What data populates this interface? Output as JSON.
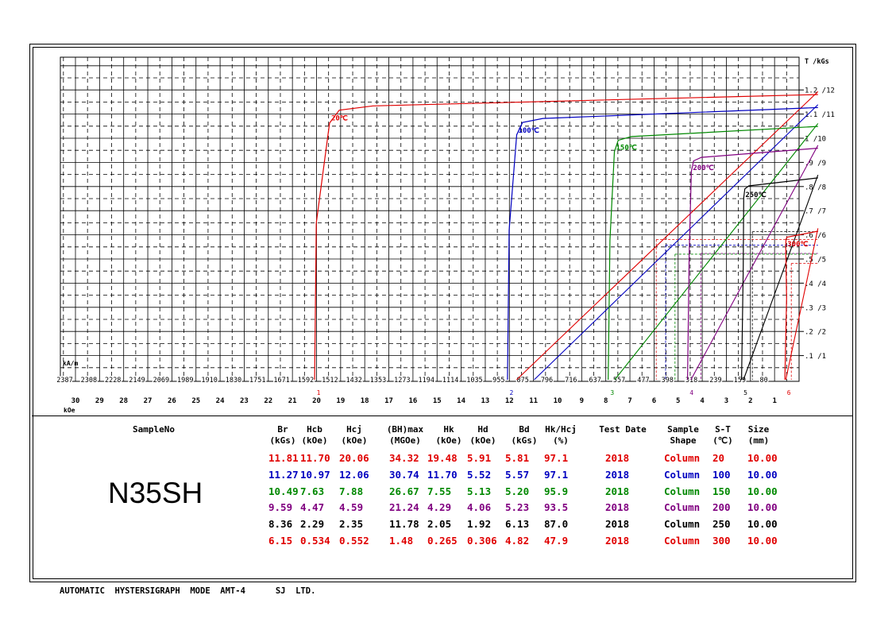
{
  "chart_data": {
    "type": "line",
    "title": "",
    "xlabel": "kOe",
    "x_unit_secondary": "kA/m",
    "ylabel": "T /kGs",
    "xlim": [
      30.5,
      -0.8
    ],
    "ylim": [
      0,
      13
    ],
    "grid": true,
    "x_ticks_koe": [
      "30",
      "29",
      "28",
      "27",
      "26",
      "25",
      "24",
      "23",
      "22",
      "21",
      "20",
      "19",
      "18",
      "17",
      "16",
      "15",
      "14",
      "13",
      "12",
      "11",
      "10",
      "9",
      "8",
      "7",
      "6",
      "5",
      "4",
      "3",
      "2",
      "1"
    ],
    "x_ticks_kam": [
      "2387",
      "2308",
      "2228",
      "2149",
      "2069",
      "1989",
      "1910",
      "1830",
      "1751",
      "1671",
      "1592",
      "1512",
      "1432",
      "1353",
      "1273",
      "1194",
      "1114",
      "1035",
      "955",
      "875",
      "796",
      "716",
      "637",
      "557",
      "477",
      "398",
      "318",
      "239",
      "159",
      "80"
    ],
    "y_ticks": [
      ".1 /1",
      ".2 /2",
      ".3 /3",
      ".4 /4",
      ".5 /5",
      ".6 /6",
      ".7 /7",
      ".8 /8",
      ".9 /9",
      "1 /10",
      "1.1 /11",
      "1.2 /12"
    ],
    "series": [
      {
        "name": "20℃",
        "color": "#e00000",
        "marker": "1",
        "br": 11.81,
        "hcb": 11.7,
        "hcj": 20.06,
        "bd": 5.81,
        "hd": 5.91
      },
      {
        "name": "100℃",
        "color": "#0000c0",
        "marker": "2",
        "br": 11.27,
        "hcb": 10.97,
        "hcj": 12.06,
        "bd": 5.57,
        "hd": 5.52
      },
      {
        "name": "150℃",
        "color": "#008800",
        "marker": "3",
        "br": 10.49,
        "hcb": 7.63,
        "hcj": 7.88,
        "bd": 5.2,
        "hd": 5.13
      },
      {
        "name": "200℃",
        "color": "#800080",
        "marker": "4",
        "br": 9.59,
        "hcb": 4.47,
        "hcj": 4.59,
        "bd": 5.23,
        "hd": 4.06
      },
      {
        "name": "250℃",
        "color": "#000000",
        "marker": "5",
        "br": 8.36,
        "hcb": 2.29,
        "hcj": 2.35,
        "bd": 6.13,
        "hd": 1.92
      },
      {
        "name": "300℃",
        "color": "#e00000",
        "marker": "6",
        "br": 6.15,
        "hcb": 0.534,
        "hcj": 0.552,
        "bd": 4.82,
        "hd": 0.306
      }
    ]
  },
  "table": {
    "sample_header": "SampleNo",
    "sample_name": "N35SH",
    "headers": [
      {
        "name": "Br",
        "unit": "(kGs)"
      },
      {
        "name": "Hcb",
        "unit": "(kOe)"
      },
      {
        "name": "Hcj",
        "unit": "(kOe)"
      },
      {
        "name": "(BH)max",
        "unit": "(MGOe)"
      },
      {
        "name": "Hk",
        "unit": "(kOe)"
      },
      {
        "name": "Hd",
        "unit": "(kOe)"
      },
      {
        "name": "Bd",
        "unit": "(kGs)"
      },
      {
        "name": "Hk/Hcj",
        "unit": "(%)"
      },
      {
        "name": "Test Date",
        "unit": ""
      },
      {
        "name": "Sample",
        "unit": "Shape"
      },
      {
        "name": "S-T",
        "unit": "(℃)"
      },
      {
        "name": "Size",
        "unit": "(mm)"
      }
    ],
    "rows": [
      {
        "color": "#e00000",
        "cells": [
          "11.81",
          "11.70",
          "20.06",
          "34.32",
          "19.48",
          "5.91",
          "5.81",
          "97.1",
          "2018",
          "Column",
          "20",
          "10.00"
        ]
      },
      {
        "color": "#0000c0",
        "cells": [
          "11.27",
          "10.97",
          "12.06",
          "30.74",
          "11.70",
          "5.52",
          "5.57",
          "97.1",
          "2018",
          "Column",
          "100",
          "10.00"
        ]
      },
      {
        "color": "#008800",
        "cells": [
          "10.49",
          "7.63",
          "7.88",
          "26.67",
          "7.55",
          "5.13",
          "5.20",
          "95.9",
          "2018",
          "Column",
          "150",
          "10.00"
        ]
      },
      {
        "color": "#800080",
        "cells": [
          "9.59",
          "4.47",
          "4.59",
          "21.24",
          "4.29",
          "4.06",
          "5.23",
          "93.5",
          "2018",
          "Column",
          "200",
          "10.00"
        ]
      },
      {
        "color": "#000000",
        "cells": [
          "8.36",
          "2.29",
          "2.35",
          "11.78",
          "2.05",
          "1.92",
          "6.13",
          "87.0",
          "2018",
          "Column",
          "250",
          "10.00"
        ]
      },
      {
        "color": "#e00000",
        "cells": [
          "6.15",
          "0.534",
          "0.552",
          "1.48",
          "0.265",
          "0.306",
          "4.82",
          "47.9",
          "2018",
          "Column",
          "300",
          "10.00"
        ]
      }
    ]
  },
  "footer": "AUTOMATIC  HYSTERSIGRAPH  MODE  AMT-4      SJ  LTD."
}
